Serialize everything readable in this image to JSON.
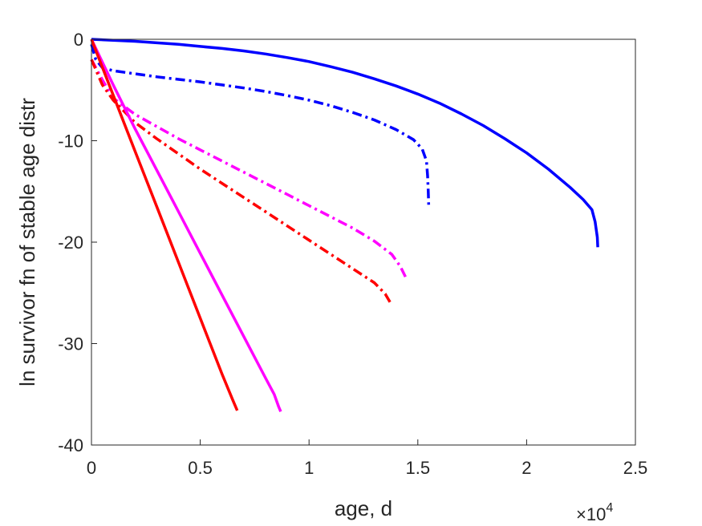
{
  "chart_data": {
    "type": "line",
    "title": "",
    "xlabel": "age, d",
    "ylabel": "ln survivor fn of stable age distr",
    "xlim": [
      0,
      25000
    ],
    "ylim": [
      -40,
      0
    ],
    "x_ticks": [
      0,
      5000,
      10000,
      15000,
      20000,
      25000
    ],
    "x_tick_labels": [
      "0",
      "0.5",
      "1",
      "1.5",
      "2",
      "2.5"
    ],
    "x_exponent_base": "×10",
    "x_exponent_power": "4",
    "y_ticks": [
      0,
      -10,
      -20,
      -30,
      -40
    ],
    "y_tick_labels": [
      "0",
      "-10",
      "-20",
      "-30",
      "-40"
    ],
    "grid": false,
    "legend": "none",
    "series": [
      {
        "color": "#0000ff",
        "dash": "solid",
        "points": [
          [
            0,
            0
          ],
          [
            1000,
            -0.1
          ],
          [
            2000,
            -0.2
          ],
          [
            3000,
            -0.35
          ],
          [
            4000,
            -0.5
          ],
          [
            5000,
            -0.7
          ],
          [
            6000,
            -0.9
          ],
          [
            7000,
            -1.15
          ],
          [
            8000,
            -1.45
          ],
          [
            9000,
            -1.8
          ],
          [
            10000,
            -2.2
          ],
          [
            11000,
            -2.7
          ],
          [
            12000,
            -3.25
          ],
          [
            13000,
            -3.9
          ],
          [
            14000,
            -4.6
          ],
          [
            15000,
            -5.4
          ],
          [
            16000,
            -6.3
          ],
          [
            17000,
            -7.35
          ],
          [
            18000,
            -8.5
          ],
          [
            19000,
            -9.8
          ],
          [
            20000,
            -11.2
          ],
          [
            21000,
            -12.8
          ],
          [
            22000,
            -14.6
          ],
          [
            22600,
            -15.8
          ],
          [
            23000,
            -16.8
          ],
          [
            23150,
            -18.0
          ],
          [
            23250,
            -19.5
          ],
          [
            23270,
            -20.5
          ]
        ]
      },
      {
        "color": "#0000ff",
        "dash": "dashdot",
        "points": [
          [
            0,
            -0.5
          ],
          [
            200,
            -2.0
          ],
          [
            500,
            -2.8
          ],
          [
            1000,
            -3.1
          ],
          [
            2000,
            -3.4
          ],
          [
            3000,
            -3.7
          ],
          [
            4000,
            -3.95
          ],
          [
            5000,
            -4.2
          ],
          [
            6000,
            -4.5
          ],
          [
            7000,
            -4.8
          ],
          [
            8000,
            -5.15
          ],
          [
            9000,
            -5.55
          ],
          [
            10000,
            -6.0
          ],
          [
            11000,
            -6.55
          ],
          [
            12000,
            -7.2
          ],
          [
            13000,
            -7.95
          ],
          [
            14000,
            -8.9
          ],
          [
            14800,
            -9.9
          ],
          [
            15200,
            -10.8
          ],
          [
            15400,
            -12.0
          ],
          [
            15450,
            -13.5
          ],
          [
            15480,
            -15.0
          ],
          [
            15500,
            -16.5
          ]
        ]
      },
      {
        "color": "#ff00ff",
        "dash": "dashdot",
        "points": [
          [
            0,
            -2.0
          ],
          [
            500,
            -4.0
          ],
          [
            1000,
            -5.8
          ],
          [
            1500,
            -6.6
          ],
          [
            2000,
            -7.4
          ],
          [
            3000,
            -8.6
          ],
          [
            4000,
            -9.8
          ],
          [
            5000,
            -10.9
          ],
          [
            6000,
            -12.0
          ],
          [
            7000,
            -13.1
          ],
          [
            8000,
            -14.2
          ],
          [
            9000,
            -15.3
          ],
          [
            10000,
            -16.4
          ],
          [
            11000,
            -17.5
          ],
          [
            12000,
            -18.6
          ],
          [
            13000,
            -19.9
          ],
          [
            13800,
            -21.2
          ],
          [
            14200,
            -22.4
          ],
          [
            14450,
            -23.5
          ]
        ]
      },
      {
        "color": "#ff0000",
        "dash": "dashdot",
        "points": [
          [
            0,
            -2.0
          ],
          [
            500,
            -4.5
          ],
          [
            1000,
            -6.0
          ],
          [
            1500,
            -7.1
          ],
          [
            2000,
            -8.2
          ],
          [
            3000,
            -9.8
          ],
          [
            4000,
            -11.3
          ],
          [
            5000,
            -12.8
          ],
          [
            6000,
            -14.2
          ],
          [
            7000,
            -15.6
          ],
          [
            8000,
            -17.0
          ],
          [
            9000,
            -18.4
          ],
          [
            10000,
            -19.8
          ],
          [
            11000,
            -21.2
          ],
          [
            12000,
            -22.6
          ],
          [
            13000,
            -24.0
          ],
          [
            13500,
            -25.1
          ],
          [
            13800,
            -26.2
          ]
        ]
      },
      {
        "color": "#ff00ff",
        "dash": "solid",
        "points": [
          [
            0,
            0
          ],
          [
            1000,
            -4.5
          ],
          [
            2000,
            -8.8
          ],
          [
            3000,
            -12.9
          ],
          [
            4000,
            -17.0
          ],
          [
            5000,
            -21.1
          ],
          [
            6000,
            -25.2
          ],
          [
            7000,
            -29.3
          ],
          [
            8000,
            -33.4
          ],
          [
            8400,
            -35.0
          ],
          [
            8600,
            -36.2
          ],
          [
            8700,
            -36.7
          ]
        ]
      },
      {
        "color": "#ff0000",
        "dash": "solid",
        "points": [
          [
            0,
            0
          ],
          [
            1000,
            -5.5
          ],
          [
            2000,
            -11.0
          ],
          [
            3000,
            -16.5
          ],
          [
            4000,
            -22.0
          ],
          [
            5000,
            -27.5
          ],
          [
            6000,
            -33.0
          ],
          [
            6500,
            -35.6
          ],
          [
            6700,
            -36.6
          ]
        ]
      }
    ]
  }
}
